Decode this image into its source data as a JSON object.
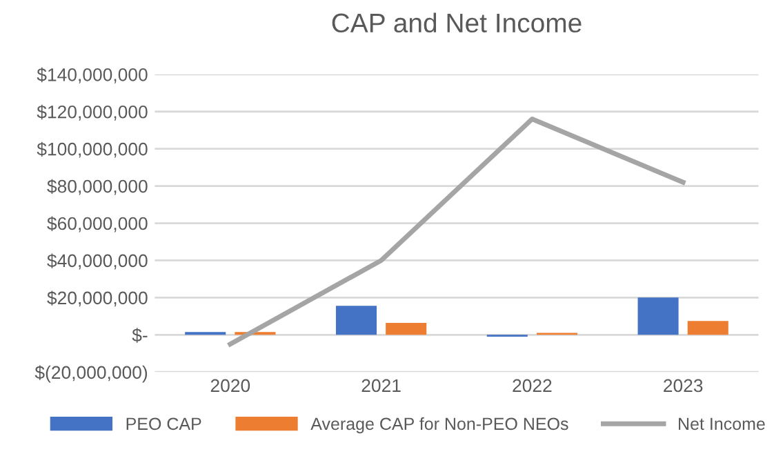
{
  "chart_data": {
    "type": "bar",
    "title": "CAP and Net Income",
    "categories": [
      "2020",
      "2021",
      "2022",
      "2023"
    ],
    "series": [
      {
        "name": "PEO CAP",
        "color": "#4472c4",
        "values": [
          1500000,
          15600000,
          -1000000,
          20000000
        ]
      },
      {
        "name": "Average CAP for Non-PEO NEOs",
        "color": "#ed7d31",
        "values": [
          1500000,
          6400000,
          1000000,
          7400000
        ]
      },
      {
        "name": "Net Income",
        "type": "line",
        "color": "#a5a5a5",
        "values": [
          -5000000,
          40000000,
          116000000,
          82000000
        ]
      }
    ],
    "ylim": [
      -20000000,
      140000000
    ],
    "yticks": [
      {
        "value": -20000000,
        "label": "$(20,000,000)"
      },
      {
        "value": 0,
        "label": "$-"
      },
      {
        "value": 20000000,
        "label": "$20,000,000"
      },
      {
        "value": 40000000,
        "label": "$40,000,000"
      },
      {
        "value": 60000000,
        "label": "$60,000,000"
      },
      {
        "value": 80000000,
        "label": "$80,000,000"
      },
      {
        "value": 100000000,
        "label": "$100,000,000"
      },
      {
        "value": 120000000,
        "label": "$120,000,000"
      },
      {
        "value": 140000000,
        "label": "$140,000,000"
      }
    ],
    "grid": "y",
    "legend": "bottom",
    "marker": "none",
    "line_style": "solid"
  }
}
